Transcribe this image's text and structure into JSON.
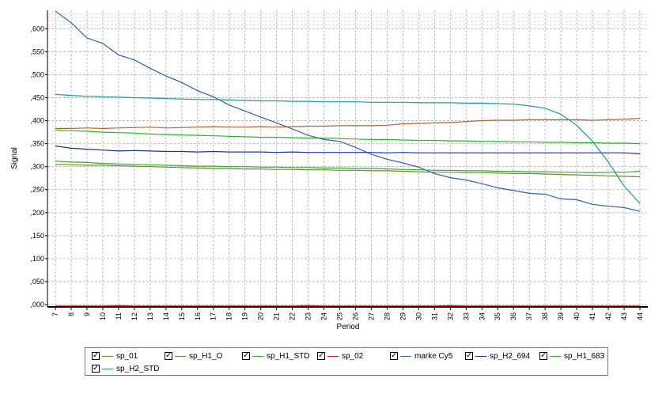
{
  "chart_data": {
    "type": "line",
    "title": "",
    "xlabel": "Period",
    "ylabel": "Signal",
    "x": [
      7,
      8,
      9,
      10,
      11,
      12,
      13,
      14,
      15,
      16,
      17,
      18,
      19,
      20,
      21,
      22,
      23,
      24,
      25,
      26,
      27,
      28,
      29,
      30,
      31,
      32,
      33,
      34,
      35,
      36,
      37,
      38,
      39,
      40,
      41,
      42,
      43,
      44
    ],
    "xlim": [
      7,
      44
    ],
    "ylim": [
      -0.005,
      0.64
    ],
    "yticks": [
      0.0,
      0.05,
      0.1,
      0.15,
      0.2,
      0.25,
      0.3,
      0.35,
      0.4,
      0.45,
      0.5,
      0.55,
      0.6
    ],
    "ytick_labels": [
      ",000",
      ",050",
      ",100",
      ",150",
      ",200",
      ",250",
      ",300",
      ",350",
      ",400",
      ",450",
      ",500",
      ",550",
      ",600"
    ],
    "xtick_labels": [
      "7",
      "8",
      "9",
      "10",
      "11",
      "12",
      "13",
      "14",
      "15",
      "16",
      "17",
      "18",
      "19",
      "20",
      "21",
      "22",
      "23",
      "24",
      "25",
      "26",
      "27",
      "28",
      "29",
      "30",
      "31",
      "32",
      "33",
      "34",
      "35",
      "36",
      "37",
      "38",
      "39",
      "40",
      "41",
      "42",
      "43",
      "44"
    ],
    "grid": true,
    "legend_position": "bottom",
    "series": [
      {
        "name": "sp_01",
        "color": "#6b8e23",
        "values": [
          0.305,
          0.304,
          0.303,
          0.303,
          0.302,
          0.301,
          0.3,
          0.299,
          0.298,
          0.297,
          0.296,
          0.296,
          0.295,
          0.295,
          0.294,
          0.294,
          0.293,
          0.293,
          0.292,
          0.292,
          0.291,
          0.291,
          0.29,
          0.289,
          0.288,
          0.288,
          0.287,
          0.287,
          0.286,
          0.285,
          0.285,
          0.284,
          0.283,
          0.282,
          0.281,
          0.28,
          0.279,
          0.278
        ]
      },
      {
        "name": "sp_H1_O",
        "color": "#b4642d",
        "values": [
          0.383,
          0.383,
          0.384,
          0.383,
          0.384,
          0.385,
          0.386,
          0.384,
          0.385,
          0.386,
          0.387,
          0.386,
          0.386,
          0.387,
          0.386,
          0.387,
          0.388,
          0.388,
          0.389,
          0.389,
          0.389,
          0.39,
          0.393,
          0.394,
          0.395,
          0.396,
          0.398,
          0.4,
          0.401,
          0.401,
          0.402,
          0.402,
          0.402,
          0.402,
          0.401,
          0.402,
          0.403,
          0.405
        ]
      },
      {
        "name": "sp_H1_STD",
        "color": "#22bb22",
        "values": [
          0.38,
          0.378,
          0.377,
          0.375,
          0.374,
          0.373,
          0.371,
          0.37,
          0.369,
          0.368,
          0.367,
          0.366,
          0.365,
          0.364,
          0.364,
          0.363,
          0.362,
          0.362,
          0.361,
          0.36,
          0.359,
          0.359,
          0.358,
          0.357,
          0.357,
          0.356,
          0.356,
          0.355,
          0.355,
          0.354,
          0.354,
          0.353,
          0.353,
          0.352,
          0.352,
          0.351,
          0.351,
          0.35
        ]
      },
      {
        "name": "sp_02",
        "color": "#cc2222",
        "values": [
          -0.003,
          -0.003,
          -0.003,
          -0.003,
          -0.002,
          -0.003,
          -0.003,
          -0.003,
          -0.003,
          -0.003,
          -0.003,
          -0.003,
          -0.003,
          -0.003,
          -0.003,
          -0.003,
          -0.002,
          -0.003,
          -0.003,
          -0.003,
          -0.003,
          -0.003,
          -0.003,
          -0.003,
          -0.003,
          -0.002,
          -0.003,
          -0.003,
          -0.003,
          -0.003,
          -0.003,
          -0.003,
          -0.003,
          -0.003,
          -0.003,
          -0.003,
          -0.003,
          -0.003
        ]
      },
      {
        "name": "marke Cy5",
        "color": "#2f5fb0",
        "values": [
          0.638,
          0.613,
          0.58,
          0.568,
          0.543,
          0.532,
          0.514,
          0.497,
          0.483,
          0.465,
          0.452,
          0.434,
          0.421,
          0.408,
          0.395,
          0.382,
          0.368,
          0.359,
          0.355,
          0.342,
          0.327,
          0.316,
          0.308,
          0.299,
          0.285,
          0.276,
          0.271,
          0.263,
          0.254,
          0.248,
          0.242,
          0.24,
          0.23,
          0.228,
          0.218,
          0.214,
          0.211,
          0.203
        ]
      },
      {
        "name": "sp_H2_694",
        "color": "#1f2fa8",
        "values": [
          0.345,
          0.34,
          0.338,
          0.336,
          0.334,
          0.335,
          0.334,
          0.333,
          0.333,
          0.332,
          0.333,
          0.332,
          0.332,
          0.332,
          0.331,
          0.332,
          0.331,
          0.331,
          0.331,
          0.331,
          0.331,
          0.33,
          0.331,
          0.33,
          0.33,
          0.33,
          0.33,
          0.33,
          0.33,
          0.33,
          0.33,
          0.33,
          0.33,
          0.33,
          0.33,
          0.33,
          0.33,
          0.328
        ]
      },
      {
        "name": "sp_H1_683",
        "color": "#33aa33",
        "values": [
          0.312,
          0.31,
          0.309,
          0.307,
          0.306,
          0.305,
          0.304,
          0.303,
          0.302,
          0.301,
          0.301,
          0.3,
          0.3,
          0.299,
          0.299,
          0.298,
          0.298,
          0.297,
          0.297,
          0.296,
          0.296,
          0.295,
          0.294,
          0.293,
          0.292,
          0.292,
          0.291,
          0.291,
          0.29,
          0.29,
          0.289,
          0.289,
          0.288,
          0.288,
          0.287,
          0.288,
          0.288,
          0.29
        ]
      },
      {
        "name": "sp_H2_STD",
        "color": "#1a9e9a",
        "values": [
          0.457,
          0.455,
          0.453,
          0.452,
          0.451,
          0.45,
          0.449,
          0.448,
          0.447,
          0.446,
          0.446,
          0.445,
          0.444,
          0.443,
          0.443,
          0.442,
          0.442,
          0.441,
          0.441,
          0.441,
          0.44,
          0.44,
          0.44,
          0.439,
          0.439,
          0.439,
          0.438,
          0.438,
          0.437,
          0.436,
          0.432,
          0.427,
          0.414,
          0.39,
          0.355,
          0.31,
          0.258,
          0.22
        ]
      }
    ]
  }
}
